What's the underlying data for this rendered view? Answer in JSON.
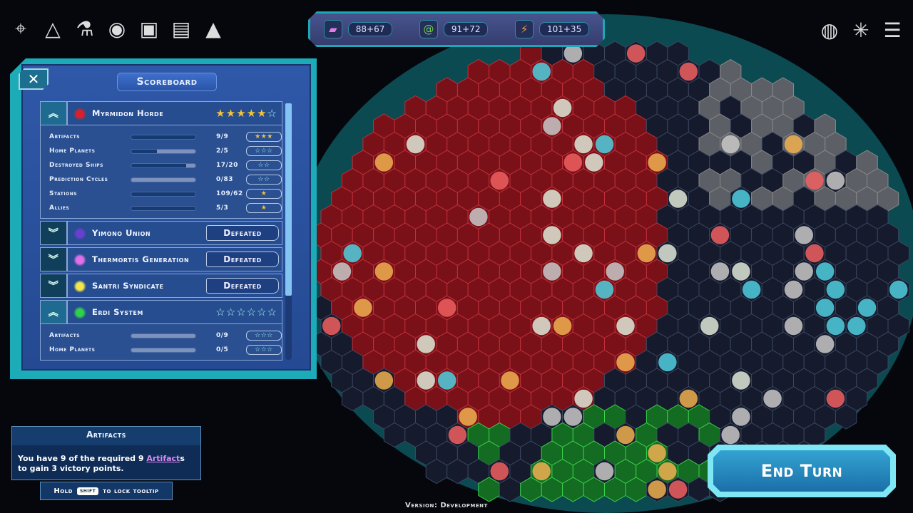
{
  "top_icons": [
    {
      "name": "target-icon",
      "glyph": "⌖"
    },
    {
      "name": "faction-triangle-icon",
      "glyph": "△"
    },
    {
      "name": "flask-icon",
      "glyph": "⚗"
    },
    {
      "name": "planet-icon",
      "glyph": "◉"
    },
    {
      "name": "star-card-icon",
      "glyph": "▣"
    },
    {
      "name": "profile-card-icon",
      "glyph": "▤"
    },
    {
      "name": "chevron-up-icon",
      "glyph": "▲"
    }
  ],
  "right_icons": [
    {
      "name": "galaxy-icon",
      "glyph": "◍"
    },
    {
      "name": "network-icon",
      "glyph": "✳"
    },
    {
      "name": "menu-icon",
      "glyph": "☰"
    }
  ],
  "resources": [
    {
      "icon": "crystal-icon",
      "glyph": "▰",
      "color": "#e07ee8",
      "value": "88+67"
    },
    {
      "icon": "spiral-icon",
      "glyph": "@",
      "color": "#6fd04a",
      "value": "91+72"
    },
    {
      "icon": "lightning-icon",
      "glyph": "⚡",
      "color": "#f2a23a",
      "value": "101+35"
    }
  ],
  "scoreboard": {
    "close": "✕",
    "title": "Scoreboard",
    "factions": [
      {
        "name": "Myrmidon Horde",
        "color": "#d8202c",
        "expanded": true,
        "stars": 5,
        "max_stars": 6,
        "rows": [
          {
            "label": "Artifacts",
            "value": "9/9",
            "progress": 1.0,
            "stars": "★★★",
            "filled": true
          },
          {
            "label": "Home Planets",
            "value": "2/5",
            "progress": 0.4,
            "stars": "☆☆☆",
            "filled": false
          },
          {
            "label": "Destroyed Ships",
            "value": "17/20",
            "progress": 0.85,
            "stars": "☆☆",
            "filled": false
          },
          {
            "label": "Prediction Cycles",
            "value": "0/83",
            "progress": 0.0,
            "stars": "☆☆",
            "filled": false
          },
          {
            "label": "Stations",
            "value": "109/62",
            "progress": 1.0,
            "stars": "★",
            "filled": true
          },
          {
            "label": "Allies",
            "value": "5/3",
            "progress": 1.0,
            "stars": "★",
            "filled": true
          }
        ]
      },
      {
        "name": "Yimono Union",
        "color": "#6a3fd0",
        "expanded": false,
        "status": "Defeated"
      },
      {
        "name": "Thermortis Generation",
        "color": "#e070e8",
        "expanded": false,
        "status": "Defeated"
      },
      {
        "name": "Santri Syndicate",
        "color": "#f2e64a",
        "expanded": false,
        "status": "Defeated"
      },
      {
        "name": "Erdi System",
        "color": "#2fd04a",
        "expanded": true,
        "stars": 0,
        "max_stars": 6,
        "rows": [
          {
            "label": "Artifacts",
            "value": "0/9",
            "progress": 0.0,
            "stars": "☆☆☆",
            "filled": false
          },
          {
            "label": "Home Planets",
            "value": "0/5",
            "progress": 0.0,
            "stars": "☆☆☆",
            "filled": false
          }
        ]
      }
    ]
  },
  "tooltip": {
    "title": "Artifacts",
    "text_before": "You have 9 of the required 9 ",
    "highlight": "Artifact",
    "text_after": "s to gain 3 victory points.",
    "hold_label": "Hold",
    "key": "SHIFT",
    "lock_label": "to lock tooltip"
  },
  "end_turn": "End Turn",
  "version": "Version: Development",
  "colors": {
    "accent": "#1dabb8",
    "panel": "#2f58a8",
    "player": "#a3161e",
    "ally_green": "#1f8a2a"
  }
}
